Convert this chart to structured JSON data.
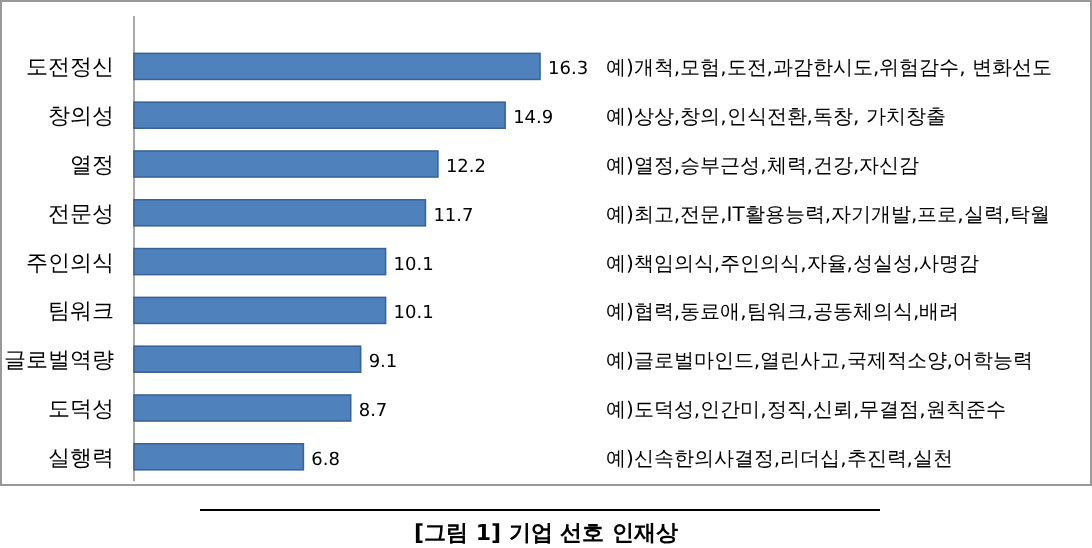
{
  "chart_data": {
    "type": "bar",
    "orientation": "horizontal",
    "title": "[그림 1] 기업 선호 인재상",
    "categories": [
      "도전정신",
      "창의성",
      "열정",
      "전문성",
      "주인의식",
      "팀워크",
      "글로벌역량",
      "도덕성",
      "실행력"
    ],
    "values": [
      16.3,
      14.9,
      12.2,
      11.7,
      10.1,
      10.1,
      9.1,
      8.7,
      6.8
    ],
    "color": "#4f81bd",
    "data_labels": true,
    "annotations": [
      "예)개척,모험,도전,과감한시도,위험감수, 변화선도",
      "예)상상,창의,인식전환,독창, 가치창출",
      "예)열정,승부근성,체력,건강,자신감",
      "예)최고,전문,IT활용능력,자기개발,프로,실력,탁월",
      "예)책임의식,주인의식,자율,성실성,사명감",
      "예)협력,동료애,팀워크,공동체의식,배려",
      "예)글로벌마인드,열린사고,국제적소양,어학능력",
      "예)도덕성,인간미,정직,신뢰,무결점,원칙준수",
      "예)신속한의사결정,리더십,추진력,실천"
    ]
  }
}
